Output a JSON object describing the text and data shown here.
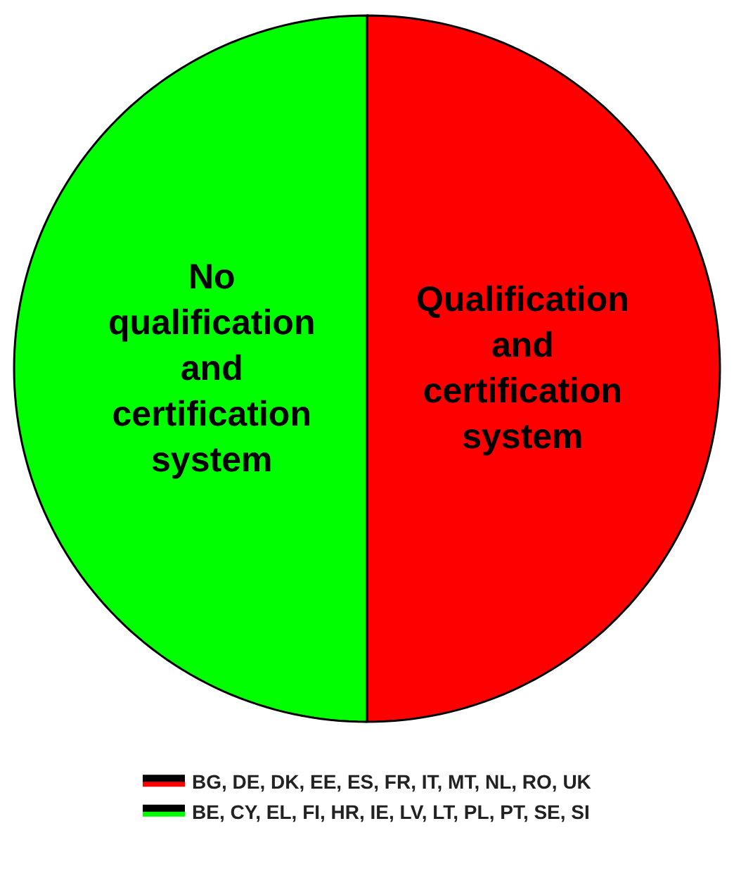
{
  "chart_data": {
    "type": "pie",
    "categories": [
      "BG, DE, DK, EE, ES, FR, IT, MT, NL, RO, UK",
      "BE, CY, EL, FI, HR, IE, LV, LT, PL, PT, SE, SI"
    ],
    "values": [
      50,
      50
    ],
    "colors": [
      "#ff0000",
      "#00ff00"
    ],
    "annotations": [
      "Qualification and certification system",
      "No qualification and certification system"
    ],
    "legend": "bottom"
  }
}
